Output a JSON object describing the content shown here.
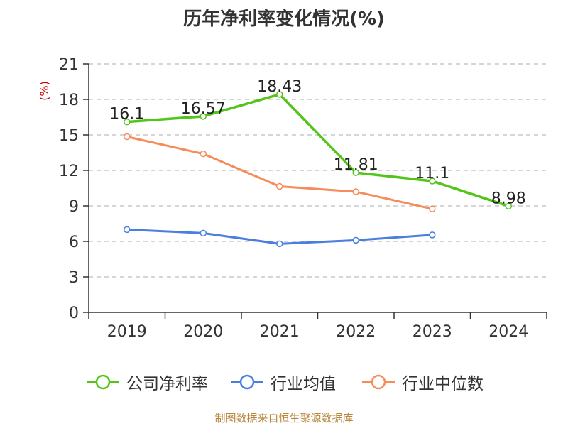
{
  "chart_data": {
    "type": "line",
    "title": "历年净利率变化情况(%)",
    "ylabel": "(%)",
    "xlabel": "",
    "categories": [
      "2019",
      "2020",
      "2021",
      "2022",
      "2023",
      "2024"
    ],
    "ylim": [
      0,
      21
    ],
    "yticks": [
      0,
      3,
      6,
      9,
      12,
      15,
      18,
      21
    ],
    "grid": true,
    "legend_position": "bottom",
    "series": [
      {
        "name": "公司净利率",
        "color": "#52c41a",
        "show_labels": true,
        "values": [
          16.1,
          16.57,
          18.43,
          11.81,
          11.1,
          8.98
        ]
      },
      {
        "name": "行业均值",
        "color": "#4a7fdf",
        "show_labels": false,
        "values": [
          7.0,
          6.7,
          5.8,
          6.1,
          6.55,
          null
        ]
      },
      {
        "name": "行业中位数",
        "color": "#f58c5a",
        "show_labels": false,
        "values": [
          14.85,
          13.4,
          10.65,
          10.2,
          8.75,
          null
        ]
      }
    ]
  },
  "source_note": "制图数据来自恒生聚源数据库"
}
